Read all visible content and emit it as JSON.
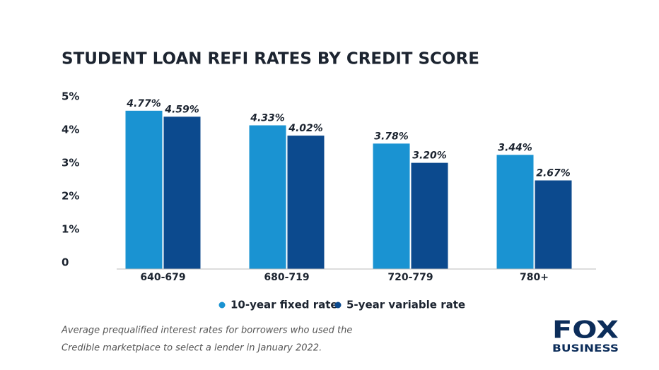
{
  "chart_data": {
    "type": "bar",
    "title": "STUDENT LOAN REFI RATES BY CREDIT SCORE",
    "categories": [
      "640-679",
      "680-719",
      "720-779",
      "780+"
    ],
    "series": [
      {
        "name": "10-year fixed rate",
        "color": "#1a93d2",
        "values": [
          4.77,
          4.33,
          3.78,
          3.44
        ],
        "value_labels": [
          "4.77%",
          "4.33%",
          "3.78%",
          "3.44%"
        ]
      },
      {
        "name": "5-year variable rate",
        "color": "#0c4a8e",
        "values": [
          4.59,
          4.02,
          3.2,
          2.67
        ],
        "value_labels": [
          "4.59%",
          "4.02%",
          "3.20%",
          "2.67%"
        ]
      }
    ],
    "ylim": [
      0,
      5
    ],
    "yticks": [
      0,
      {
        "value": 1,
        "label": "1%"
      },
      {
        "value": 2,
        "label": "2%"
      },
      {
        "value": 3,
        "label": "3%"
      },
      {
        "value": 4,
        "label": "4%"
      },
      {
        "value": 5,
        "label": "5%"
      }
    ],
    "grid": false,
    "note": [
      "Average prequalified interest rates for borrowers who used the",
      "Credible marketplace to select a lender in January 2022."
    ]
  },
  "logo": {
    "top": "FOX",
    "bottom": "BUSINESS"
  }
}
